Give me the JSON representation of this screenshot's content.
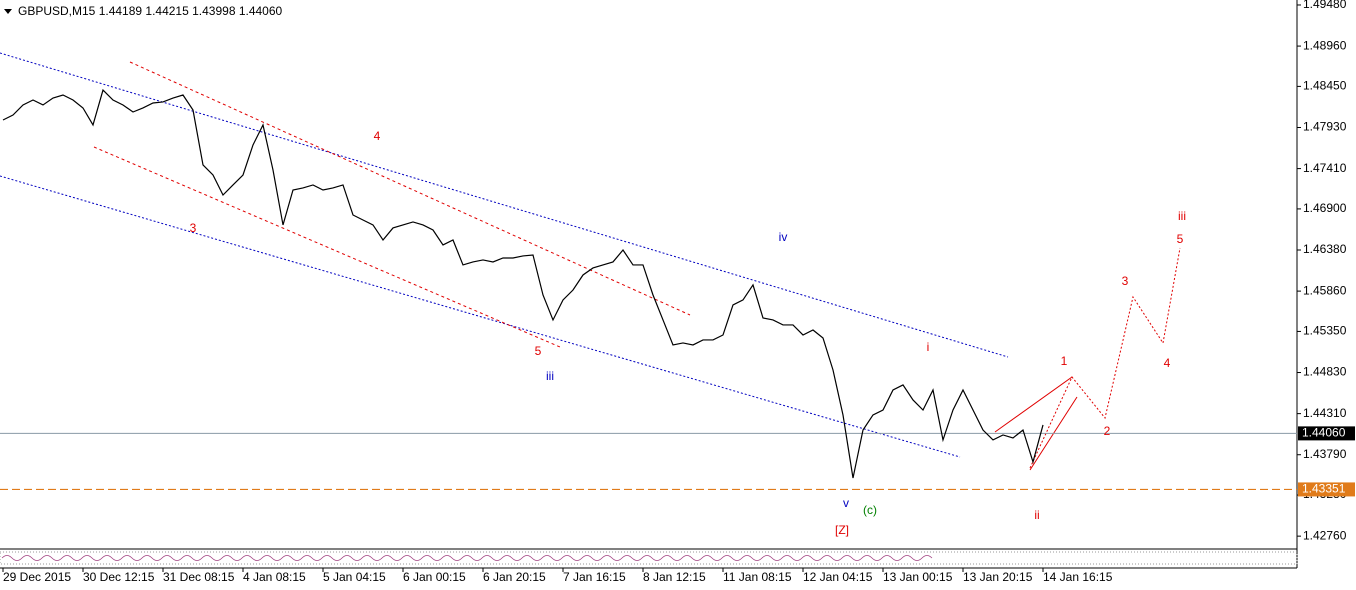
{
  "chart_data": {
    "type": "line",
    "title": "GBPUSD,M15  1.44189 1.44215 1.43998 1.44060",
    "color": "#000000",
    "values": [
      1.48025,
      1.48088,
      1.48215,
      1.48278,
      1.48215,
      1.48303,
      1.48341,
      1.48278,
      1.48177,
      1.47962,
      1.48404,
      1.48278,
      1.48215,
      1.48126,
      1.48177,
      1.4824,
      1.48253,
      1.48303,
      1.48341,
      1.48151,
      1.47456,
      1.47329,
      1.47076,
      1.47203,
      1.47329,
      1.47709,
      1.47962,
      1.47392,
      1.46697,
      1.47139,
      1.47165,
      1.47203,
      1.47139,
      1.47165,
      1.47203,
      1.46823,
      1.4676,
      1.46697,
      1.46507,
      1.46659,
      1.46697,
      1.46735,
      1.46697,
      1.46633,
      1.46444,
      1.46507,
      1.46191,
      1.46229,
      1.46254,
      1.46229,
      1.46279,
      1.46279,
      1.46305,
      1.46317,
      1.45811,
      1.45495,
      1.45748,
      1.45874,
      1.46064,
      1.46153,
      1.46191,
      1.46229,
      1.4638,
      1.46191,
      1.46191,
      1.45811,
      1.45495,
      1.45179,
      1.45204,
      1.45179,
      1.45242,
      1.45242,
      1.45305,
      1.45685,
      1.45748,
      1.45938,
      1.4552,
      1.45495,
      1.45432,
      1.45432,
      1.45305,
      1.45368,
      1.45267,
      1.44862,
      1.44293,
      1.43496,
      1.44103,
      1.44293,
      1.44356,
      1.44609,
      1.44673,
      1.44483,
      1.44356,
      1.44609,
      1.43977,
      1.44356,
      1.44609,
      1.44356,
      1.44103,
      1.43977,
      1.4404,
      1.44002,
      1.44103,
      1.43699,
      1.44167
    ],
    "x_labels": [
      "29 Dec 2015",
      "30 Dec 12:15",
      "31 Dec 08:15",
      "4 Jan 08:15",
      "5 Jan 04:15",
      "6 Jan 00:15",
      "6 Jan 20:15",
      "7 Jan 16:15",
      "8 Jan 12:15",
      "11 Jan 08:15",
      "12 Jan 04:15",
      "13 Jan 00:15",
      "13 Jan 20:15",
      "14 Jan 16:15"
    ],
    "ylim": [
      1.4261,
      1.49543
    ],
    "yticks": [
      {
        "value": 1.4948,
        "label": "1.49480"
      },
      {
        "value": 1.4896,
        "label": "1.48960"
      },
      {
        "value": 1.4845,
        "label": "1.48450"
      },
      {
        "value": 1.4793,
        "label": "1.47930"
      },
      {
        "value": 1.4741,
        "label": "1.47410"
      },
      {
        "value": 1.469,
        "label": "1.46900"
      },
      {
        "value": 1.4638,
        "label": "1.46380"
      },
      {
        "value": 1.4586,
        "label": "1.45860"
      },
      {
        "value": 1.4535,
        "label": "1.45350"
      },
      {
        "value": 1.4483,
        "label": "1.44830"
      },
      {
        "value": 1.4431,
        "label": "1.44310"
      },
      {
        "value": 1.4379,
        "label": "1.43790"
      },
      {
        "value": 1.4328,
        "label": "1.43280"
      },
      {
        "value": 1.4276,
        "label": "1.42760"
      }
    ],
    "current_price": {
      "value": 1.4406,
      "label": "1.44060"
    },
    "level": {
      "value": 1.43351,
      "label": "1.43351",
      "color": "#e07b1a"
    },
    "annotations": [
      {
        "text": "4",
        "color": "#e00000"
      },
      {
        "text": "3",
        "color": "#e00000"
      },
      {
        "text": "5",
        "color": "#e00000"
      },
      {
        "text": "iii",
        "color": "#0000c0"
      },
      {
        "text": "iv",
        "color": "#0000c0"
      },
      {
        "text": "i",
        "color": "#e00000"
      },
      {
        "text": "v",
        "color": "#0000c0"
      },
      {
        "text": "(c)",
        "color": "#008000"
      },
      {
        "text": "[Z]",
        "color": "#e00000"
      },
      {
        "text": "ii",
        "color": "#e00000"
      },
      {
        "text": "1",
        "color": "#e00000"
      },
      {
        "text": "2",
        "color": "#e00000"
      },
      {
        "text": "3",
        "color": "#e00000"
      },
      {
        "text": "4",
        "color": "#e00000"
      },
      {
        "text": "5",
        "color": "#e00000"
      },
      {
        "text": "iii",
        "color": "#e00000"
      }
    ]
  }
}
